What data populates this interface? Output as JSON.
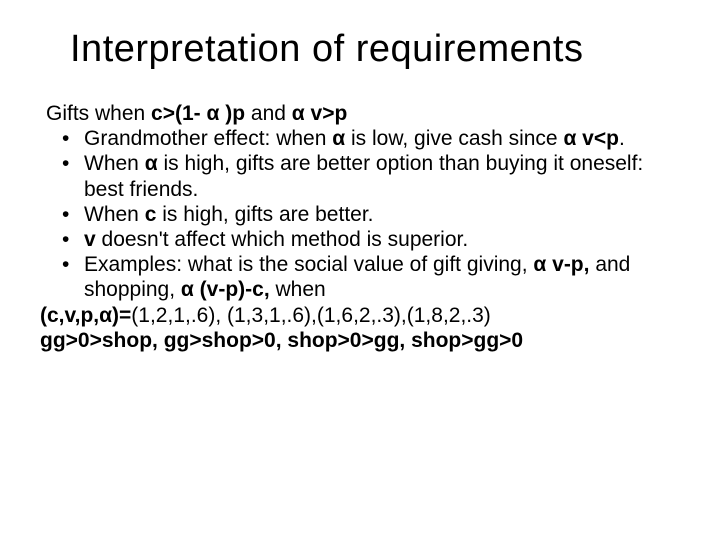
{
  "slide": {
    "title": "Interpretation of requirements",
    "intro_prefix": "Gifts when ",
    "intro_bold1": "c>(1- α )p",
    "intro_mid": " and ",
    "intro_bold2": "α v>p",
    "bullets": {
      "b1_a": "Grandmother effect: when ",
      "b1_b": "α",
      "b1_c": " is low, give cash since ",
      "b1_d": "α v<p",
      "b1_e": ".",
      "b2_a": "When ",
      "b2_b": "α",
      "b2_c": " is high, gifts are better option than buying it oneself: best friends.",
      "b3_a": "When ",
      "b3_b": "c",
      "b3_c": " is high, gifts are better.",
      "b4_a": "v",
      "b4_b": " doesn't affect which method is superior.",
      "b5_a": "Examples: what is the social value of gift giving, ",
      "b5_b": "α v-p,",
      "b5_c": " and shopping, ",
      "b5_d": "α (v-p)-c,",
      "b5_e": " when"
    },
    "tail1_a": "(c,v,p,α)=",
    "tail1_b": "(1,2,1,.6), (1,3,1,.6),(1,6,2,.3),(1,8,2,.3)",
    "tail2": "gg>0>shop, gg>shop>0, shop>0>gg, shop>gg>0"
  },
  "style": {
    "background_color": "#ffffff",
    "text_color": "#000000",
    "title_fontsize": 38,
    "body_fontsize": 21,
    "font_family": "Arial"
  }
}
